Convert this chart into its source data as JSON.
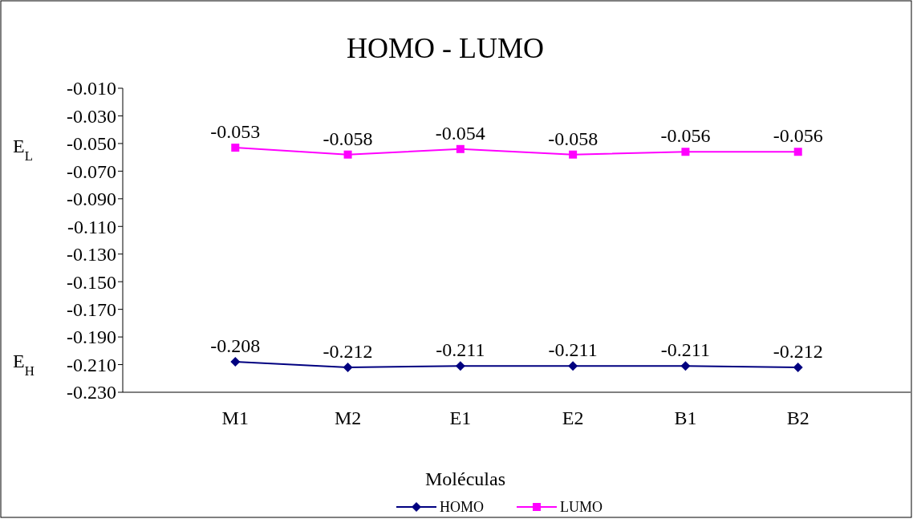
{
  "chart_data": {
    "type": "line",
    "title": "HOMO - LUMO",
    "xlabel": "Moléculas",
    "categories": [
      "M1",
      "M2",
      "E1",
      "E2",
      "B1",
      "B2"
    ],
    "series": [
      {
        "name": "HOMO",
        "color": "#000080",
        "marker": "diamond",
        "values": [
          -0.208,
          -0.212,
          -0.211,
          -0.211,
          -0.211,
          -0.212
        ]
      },
      {
        "name": "LUMO",
        "color": "#ff00ff",
        "marker": "square",
        "values": [
          -0.053,
          -0.058,
          -0.054,
          -0.058,
          -0.056,
          -0.056
        ]
      }
    ],
    "ylim": [
      -0.23,
      -0.01
    ],
    "yticks": [
      {
        "value": -0.01,
        "label": "-0.010"
      },
      {
        "value": -0.03,
        "label": "-0.030"
      },
      {
        "value": -0.05,
        "label": "-0.050"
      },
      {
        "value": -0.07,
        "label": "-0.070"
      },
      {
        "value": -0.09,
        "label": "-0.090"
      },
      {
        "value": -0.11,
        "label": "-0.110"
      },
      {
        "value": -0.13,
        "label": "-0.130"
      },
      {
        "value": -0.15,
        "label": "-0.150"
      },
      {
        "value": -0.17,
        "label": "-0.170"
      },
      {
        "value": -0.19,
        "label": "-0.190"
      },
      {
        "value": -0.21,
        "label": "-0.210"
      },
      {
        "value": -0.23,
        "label": "-0.230"
      }
    ],
    "annotations": [
      "E$_{H}$",
      "E$_{L}$"
    ],
    "data_labels": true,
    "legend": "bottom",
    "grid": false
  }
}
